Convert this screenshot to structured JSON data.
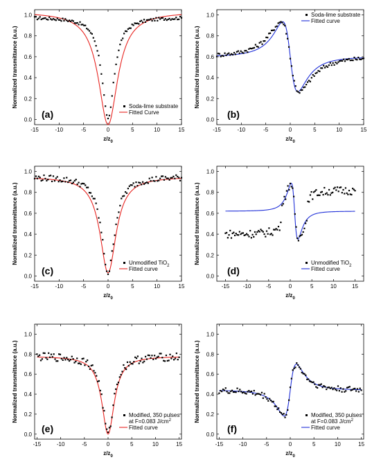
{
  "chart_data": [
    {
      "panel": "(a)",
      "type": "scatter",
      "xlabel": "z/z",
      "xlabel_sub": "0",
      "ylabel": "Normalized transmittance (a.u.)",
      "xlim": [
        -15,
        15
      ],
      "ylim": [
        -0.05,
        1.05
      ],
      "xticks": [
        -15,
        -10,
        -5,
        0,
        5,
        10,
        15
      ],
      "yticks": [
        0.0,
        0.2,
        0.4,
        0.6,
        0.8,
        1.0
      ],
      "legend_position": "bottom-right",
      "points_series": {
        "name": "Soda-lime substrate",
        "color": "#000000",
        "kind": "dip",
        "baseline": 0.98,
        "depth": 0.98,
        "width": 1.5,
        "noise": 0.015
      },
      "fit_series": {
        "name": "Fitted Curve",
        "color": "#e8231f",
        "kind": "dip",
        "baseline": 1.03,
        "depth": 1.08,
        "width": 2.4
      }
    },
    {
      "panel": "(b)",
      "type": "scatter",
      "xlabel": "z/z",
      "xlabel_sub": "0",
      "ylabel": "Normalized transmittance (a.u.)",
      "xlim": [
        -15,
        15
      ],
      "ylim": [
        -0.05,
        1.05
      ],
      "xticks": [
        -15,
        -10,
        -5,
        0,
        5,
        10,
        15
      ],
      "yticks": [
        0.0,
        0.2,
        0.4,
        0.6,
        0.8,
        1.0
      ],
      "legend_position": "top-right",
      "points_series": {
        "name": "Soda-lime substrate",
        "color": "#000000",
        "kind": "peakvalley",
        "baseline": 0.6,
        "amp": 0.75,
        "width": 2.2,
        "noise": 0.02
      },
      "fit_series": {
        "name": "Fitted curve",
        "color": "#1f2fd8",
        "kind": "peakvalley",
        "baseline": 0.6,
        "amp": 0.75,
        "width": 1.8
      }
    },
    {
      "panel": "(c)",
      "type": "scatter",
      "xlabel": "z/z",
      "xlabel_sub": "0",
      "ylabel": "Normalized transmittance (a.u.)",
      "xlim": [
        -15,
        15
      ],
      "ylim": [
        -0.05,
        1.05
      ],
      "xticks": [
        -15,
        -10,
        -5,
        0,
        5,
        10,
        15
      ],
      "yticks": [
        0.0,
        0.2,
        0.4,
        0.6,
        0.8,
        1.0
      ],
      "legend_position": "bottom-right",
      "points_series": {
        "name": "Unmodified TiO",
        "name_sub": "2",
        "color": "#000000",
        "kind": "dip",
        "baseline": 0.95,
        "depth": 0.92,
        "width": 1.6,
        "noise": 0.03
      },
      "fit_series": {
        "name": "Fitted curve",
        "color": "#e8231f",
        "kind": "dip",
        "baseline": 0.95,
        "depth": 0.92,
        "width": 2.0
      }
    },
    {
      "panel": "(d)",
      "type": "scatter",
      "xlabel": "z/z",
      "xlabel_sub": "0",
      "ylabel": "Normalized transmittance (a.u.)",
      "xlim": [
        -17,
        17
      ],
      "ylim": [
        -0.05,
        1.05
      ],
      "xticks": [
        -15,
        -10,
        -5,
        0,
        5,
        10,
        15
      ],
      "yticks": [
        0.0,
        0.2,
        0.4,
        0.6,
        0.8,
        1.0
      ],
      "legend_position": "bottom-right",
      "points_series": {
        "name": "Unmodified TiO",
        "name_sub": "2",
        "color": "#000000",
        "kind": "peakvalley_skew",
        "baseline": 0.62,
        "amp": 0.6,
        "width": 1.0,
        "noise": 0.04
      },
      "fit_series": {
        "name": "Fitted curve",
        "color": "#1f2fd8",
        "kind": "peakvalley_narrow",
        "baseline": 0.62,
        "amp": 0.6,
        "width": 0.9
      }
    },
    {
      "panel": "(e)",
      "type": "scatter",
      "xlabel": "z/z",
      "xlabel_sub": "0",
      "ylabel": "Normalized transmittance (a.u.)",
      "xlim": [
        -15.5,
        15.5
      ],
      "ylim": [
        -0.05,
        1.1
      ],
      "xticks": [
        -15,
        -10,
        -5,
        0,
        5,
        10,
        15
      ],
      "yticks": [
        0.0,
        0.2,
        0.4,
        0.6,
        0.8,
        1.0
      ],
      "legend_position": "bottom-right",
      "points_series": {
        "name": "Modified, 350 pulses",
        "name_line2": "at F=0.083 J/cm",
        "name_sup": "2",
        "color": "#000000",
        "kind": "dip",
        "baseline": 0.78,
        "depth": 0.78,
        "width": 1.4,
        "noise": 0.04
      },
      "fit_series": {
        "name": "Fitted curve",
        "color": "#e8231f",
        "kind": "dip",
        "baseline": 0.78,
        "depth": 0.78,
        "width": 1.6
      }
    },
    {
      "panel": "(f)",
      "type": "scatter",
      "xlabel": "z/z",
      "xlabel_sub": "0",
      "ylabel": "Normalized transmittance (a.u.)",
      "xlim": [
        -15.5,
        15.5
      ],
      "ylim": [
        -0.05,
        1.1
      ],
      "xticks": [
        -15,
        -10,
        -5,
        0,
        5,
        10,
        15
      ],
      "yticks": [
        0.0,
        0.2,
        0.4,
        0.6,
        0.8,
        1.0
      ],
      "legend_position": "bottom-right",
      "points_series": {
        "name": "Modified, 350 pulses",
        "name_line2": "at F=0.083 J/cm",
        "name_sup": "2",
        "color": "#000000",
        "kind": "peakvalley_rev",
        "baseline": 0.44,
        "amp": 0.58,
        "width": 1.5,
        "noise": 0.03
      },
      "fit_series": {
        "name": "Fitted curve",
        "color": "#1f2fd8",
        "kind": "peakvalley_rev",
        "baseline": 0.44,
        "amp": 0.58,
        "width": 1.5
      }
    }
  ]
}
